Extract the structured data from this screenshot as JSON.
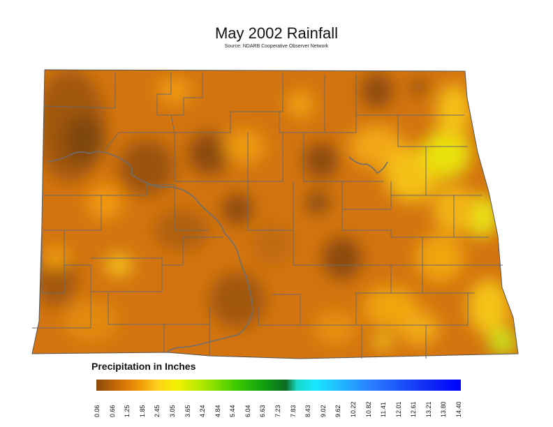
{
  "map": {
    "title": "May 2002 Rainfall",
    "subtitle": "Source: NDARB Cooperative Observer Network",
    "region": "North Dakota",
    "variable": "Precipitation",
    "units": "inches"
  },
  "legend": {
    "title": "Precipitation in Inches",
    "ticks": [
      "0.06",
      "0.66",
      "1.25",
      "1.85",
      "2.45",
      "3.05",
      "3.65",
      "4.24",
      "4.84",
      "5.44",
      "6.04",
      "6.63",
      "7.23",
      "7.83",
      "8.43",
      "9.02",
      "9.62",
      "10.22",
      "10.82",
      "11.41",
      "12.01",
      "12.61",
      "13.21",
      "13.80",
      "14.40"
    ],
    "colors": [
      "#8a4a08",
      "#d4730a",
      "#f29a0a",
      "#ffd21a",
      "#eaf200",
      "#c6ef00",
      "#7fe000",
      "#2cc400",
      "#0e8a10",
      "#116628",
      "#0fd6d6",
      "#19e8ff",
      "#3a9cff",
      "#1f4ff0",
      "#0f1ff0",
      "#0000ff"
    ]
  }
}
